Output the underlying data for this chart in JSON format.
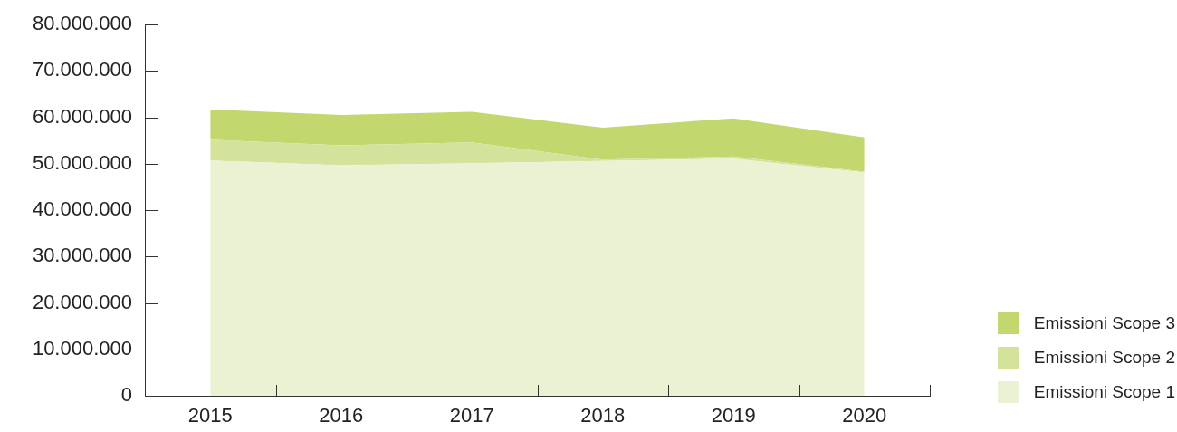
{
  "chart_data": {
    "type": "area",
    "stacked": true,
    "categories": [
      "2015",
      "2016",
      "2017",
      "2018",
      "2019",
      "2020"
    ],
    "series": [
      {
        "name": "Emissioni Scope 1",
        "color": "#eaf2d3",
        "values": [
          50700000,
          49700000,
          50100000,
          50600000,
          51100000,
          48100000
        ]
      },
      {
        "name": "Emissioni Scope 2",
        "color": "#d4e39b",
        "values": [
          4500000,
          4300000,
          4500000,
          300000,
          500000,
          200000
        ]
      },
      {
        "name": "Emissioni Scope 3",
        "color": "#c2d76e",
        "values": [
          6500000,
          6500000,
          6600000,
          6900000,
          8200000,
          7400000
        ]
      }
    ],
    "ylim": [
      0,
      80000000
    ],
    "yticks": [
      {
        "value": 0,
        "label": "0"
      },
      {
        "value": 10000000,
        "label": "10.000.000"
      },
      {
        "value": 20000000,
        "label": "20.000.000"
      },
      {
        "value": 30000000,
        "label": "30.000.000"
      },
      {
        "value": 40000000,
        "label": "40.000.000"
      },
      {
        "value": 50000000,
        "label": "50.000.000"
      },
      {
        "value": 60000000,
        "label": "60.000.000"
      },
      {
        "value": 70000000,
        "label": "70.000.000"
      },
      {
        "value": 80000000,
        "label": "80.000.000"
      }
    ],
    "grid": false,
    "legend": "bottom right",
    "marker": "none"
  }
}
